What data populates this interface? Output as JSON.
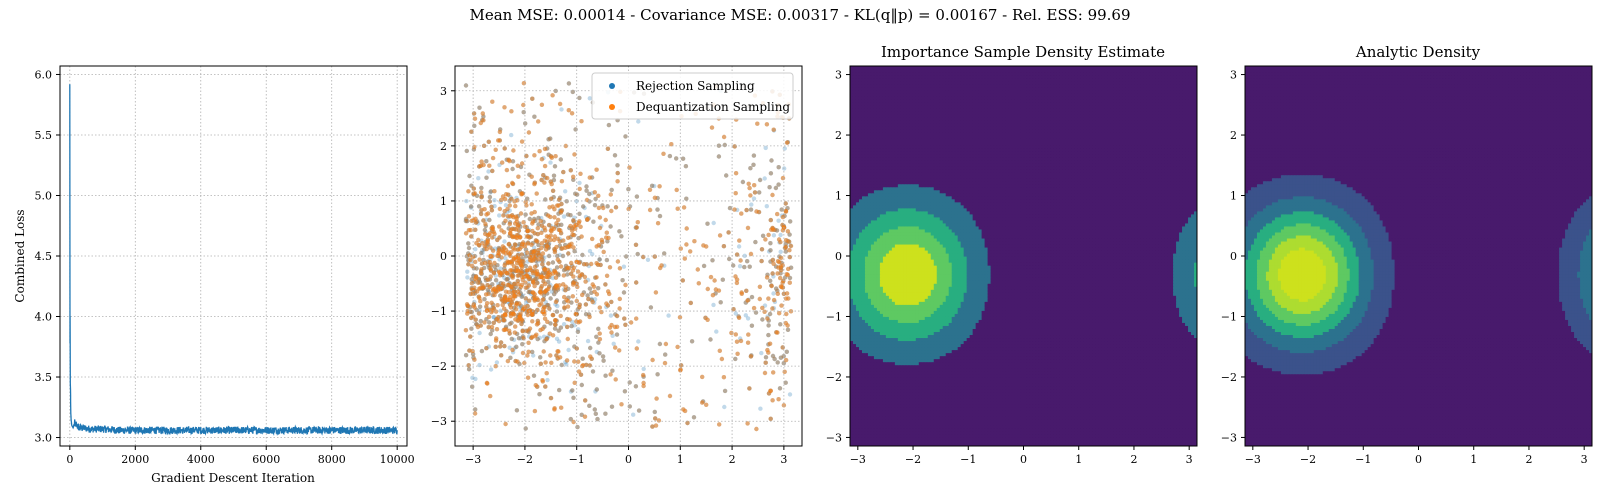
{
  "suptitle": "Mean MSE: 0.00014 - Covariance MSE: 0.00317 - KL(q‖p) = 0.00167 - Rel. ESS: 99.69",
  "colors": {
    "loss_line": "#1f77b4",
    "rejection": "#1f77b4",
    "dequantization": "#ff7f0e",
    "grid": "#b0b0b0",
    "viridis_levels": [
      "#481a6c",
      "#3b528b",
      "#2c728e",
      "#21918c",
      "#28ae80",
      "#5ec962",
      "#addc30",
      "#cde11d"
    ]
  },
  "chart_data": [
    {
      "type": "line",
      "title": "",
      "xlabel": "Gradient Descent Iteration",
      "ylabel": "Combined Loss",
      "xlim": [
        -300,
        10300
      ],
      "ylim": [
        2.93,
        6.07
      ],
      "xticks": [
        "0",
        "2000",
        "4000",
        "6000",
        "8000",
        "10000"
      ],
      "yticks": [
        "3.0",
        "3.5",
        "4.0",
        "4.5",
        "5.0",
        "5.5",
        "6.0"
      ],
      "grid": true,
      "series": [
        {
          "x": [
            0,
            5,
            10,
            15,
            20,
            25,
            30,
            40,
            50,
            60,
            80,
            100,
            150,
            200,
            300,
            400,
            600,
            800,
            1000,
            1500,
            2000,
            3000,
            4000,
            5000,
            6000,
            7000,
            8000,
            9000,
            10000
          ],
          "values": [
            5.92,
            3.78,
            4.0,
            3.45,
            3.4,
            3.3,
            3.2,
            3.15,
            3.12,
            3.1,
            3.09,
            3.08,
            3.12,
            3.1,
            3.08,
            3.08,
            3.07,
            3.07,
            3.07,
            3.06,
            3.06,
            3.06,
            3.06,
            3.06,
            3.06,
            3.06,
            3.06,
            3.06,
            3.06
          ],
          "noise_band": 0.03
        }
      ]
    },
    {
      "type": "scatter",
      "title": "",
      "xlabel": "",
      "ylabel": "",
      "xlim": [
        -3.35,
        3.35
      ],
      "ylim": [
        -3.45,
        3.45
      ],
      "xticks": [
        "−3",
        "−2",
        "−1",
        "0",
        "1",
        "2",
        "3"
      ],
      "yticks": [
        "−3",
        "−2",
        "−1",
        "0",
        "1",
        "2",
        "3"
      ],
      "grid": true,
      "legend_position": "top-right",
      "domain": [
        -3.14159,
        3.14159
      ],
      "series": [
        {
          "name": "Rejection Sampling",
          "color": "#1f77b4",
          "n_points": 2600,
          "mode_x": -2.1,
          "mode_y": -0.3,
          "concentration": 1.0
        },
        {
          "name": "Dequantization Sampling",
          "color": "#ff7f0e",
          "n_points": 2600,
          "mode_x": -2.1,
          "mode_y": -0.3,
          "concentration": 1.0
        }
      ]
    },
    {
      "type": "heatmap",
      "title": "Importance Sample Density Estimate",
      "xlabel": "",
      "ylabel": "",
      "xlim": [
        -3.14159,
        3.14159
      ],
      "ylim": [
        -3.14159,
        3.14159
      ],
      "xticks": [
        "−3",
        "−2",
        "−1",
        "0",
        "1",
        "2",
        "3"
      ],
      "yticks": [
        "−3",
        "−2",
        "−1",
        "0",
        "1",
        "2",
        "3"
      ],
      "mode_x": -2.1,
      "mode_y": -0.3,
      "kappa_x": 0.9,
      "kappa_y": 0.9,
      "coupling": 0.75,
      "levels": 5
    },
    {
      "type": "heatmap",
      "title": "Analytic Density",
      "xlabel": "",
      "ylabel": "",
      "xlim": [
        -3.14159,
        3.14159
      ],
      "ylim": [
        -3.14159,
        3.14159
      ],
      "xticks": [
        "−3",
        "−2",
        "−1",
        "0",
        "1",
        "2",
        "3"
      ],
      "yticks": [
        "−3",
        "−2",
        "−1",
        "0",
        "1",
        "2",
        "3"
      ],
      "mode_x": -2.1,
      "mode_y": -0.3,
      "kappa_x": 0.9,
      "kappa_y": 0.9,
      "coupling": 0.75,
      "levels": 7
    }
  ]
}
